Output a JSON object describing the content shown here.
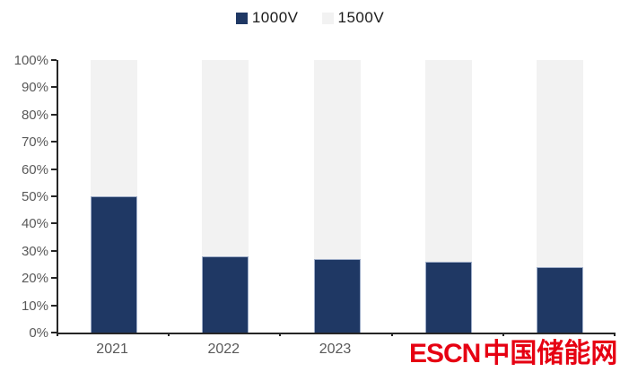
{
  "legend": {
    "items": [
      {
        "label": "1000V",
        "color": "#1F3864"
      },
      {
        "label": "1500V",
        "color": "#F2F2F2"
      }
    ]
  },
  "chart_data": {
    "type": "bar",
    "stacked": true,
    "unit": "percent",
    "categories": [
      "2021",
      "2022",
      "2023",
      "",
      ""
    ],
    "series": [
      {
        "name": "1000V",
        "color": "#1F3864",
        "values": [
          50,
          28,
          27,
          26,
          24
        ]
      },
      {
        "name": "1500V",
        "color": "#F2F2F2",
        "values": [
          50,
          72,
          73,
          74,
          76
        ]
      }
    ],
    "yticks": [
      "0%",
      "10%",
      "20%",
      "30%",
      "40%",
      "50%",
      "60%",
      "70%",
      "80%",
      "90%",
      "100%"
    ],
    "ylim": [
      0,
      100
    ],
    "grid": false,
    "legend_position": "top-center",
    "note": "x-axis labels of the last two categories are hidden behind the watermark"
  },
  "watermark": {
    "latin": "ESCN",
    "cjk": "中国储能网",
    "color": "#E60012"
  }
}
